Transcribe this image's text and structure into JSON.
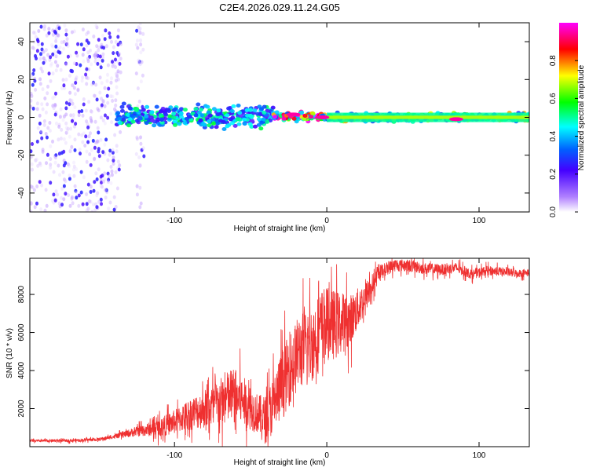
{
  "figure_title": "C2E4.2026.029.11.24.G05",
  "chart_data": [
    {
      "type": "heatmap",
      "name": "spectrogram",
      "xlabel": "Height of straight line (km)",
      "ylabel": "Frequency (Hz)",
      "xlim": [
        -195,
        133
      ],
      "ylim": [
        -50,
        50
      ],
      "x_ticks": [
        -100,
        0,
        100
      ],
      "y_ticks": [
        -40,
        -20,
        0,
        20,
        40
      ],
      "colorbar": {
        "label": "Normalized spectral amplitude",
        "range": [
          0.0,
          1.0
        ],
        "ticks": [
          "0.0",
          "0.2",
          "0.4",
          "0.6",
          "0.8"
        ],
        "colors": [
          "#ffffff",
          "#7b00ff",
          "#0000ff",
          "#00ffff",
          "#00ff00",
          "#ffff00",
          "#ff0000",
          "#ff00ff"
        ]
      },
      "regions": [
        {
          "x_range": [
            -195,
            -135
          ],
          "freq_range": [
            -50,
            50
          ],
          "typical_amplitude": 0.05,
          "note": "scattered noise"
        },
        {
          "x_range": [
            -125,
            -120
          ],
          "freq_range": [
            -50,
            50
          ],
          "typical_amplitude": 0.05,
          "note": "noise column"
        },
        {
          "x_range": [
            -138,
            -35
          ],
          "freq_range": [
            -7,
            8
          ],
          "typical_amplitude": 0.4,
          "note": "broad signal band"
        },
        {
          "x_range": [
            -35,
            0
          ],
          "freq_range": [
            -3,
            4
          ],
          "typical_amplitude": 0.75,
          "note": "narrowing band"
        },
        {
          "x_range": [
            0,
            133
          ],
          "freq_range": [
            -3,
            3
          ],
          "typical_amplitude": 0.55,
          "note": "narrow carrier"
        }
      ],
      "hotspots": [
        {
          "x": -22,
          "freq": 1.5,
          "amplitude": 0.95
        },
        {
          "x": -3,
          "freq": 0,
          "amplitude": 0.95
        },
        {
          "x": 85,
          "freq": -1,
          "amplitude": 0.95
        }
      ]
    },
    {
      "type": "line",
      "name": "snr",
      "xlabel": "Height of straight line (km)",
      "ylabel": "SNR (10 * v/v)",
      "xlim": [
        -195,
        133
      ],
      "ylim": [
        0,
        9900
      ],
      "x_ticks": [
        -100,
        0,
        100
      ],
      "y_ticks": [
        2000,
        4000,
        6000,
        8000
      ],
      "line_color": "#ef3030",
      "series": [
        {
          "name": "SNR",
          "points": [
            {
              "x": -195,
              "y": 300
            },
            {
              "x": -170,
              "y": 320
            },
            {
              "x": -150,
              "y": 380
            },
            {
              "x": -138,
              "y": 550
            },
            {
              "x": -125,
              "y": 800
            },
            {
              "x": -110,
              "y": 1000
            },
            {
              "x": -100,
              "y": 1300
            },
            {
              "x": -90,
              "y": 1700
            },
            {
              "x": -80,
              "y": 2000
            },
            {
              "x": -70,
              "y": 2300
            },
            {
              "x": -62,
              "y": 2700
            },
            {
              "x": -55,
              "y": 2400
            },
            {
              "x": -48,
              "y": 1900
            },
            {
              "x": -40,
              "y": 1400
            },
            {
              "x": -33,
              "y": 2600
            },
            {
              "x": -25,
              "y": 4000
            },
            {
              "x": -18,
              "y": 5000
            },
            {
              "x": -10,
              "y": 5400
            },
            {
              "x": -2,
              "y": 6500
            },
            {
              "x": 5,
              "y": 6400
            },
            {
              "x": 15,
              "y": 6600
            },
            {
              "x": 25,
              "y": 7800
            },
            {
              "x": 35,
              "y": 9200
            },
            {
              "x": 45,
              "y": 9550
            },
            {
              "x": 55,
              "y": 9500
            },
            {
              "x": 65,
              "y": 9350
            },
            {
              "x": 75,
              "y": 9300
            },
            {
              "x": 85,
              "y": 9400
            },
            {
              "x": 95,
              "y": 9050
            },
            {
              "x": 105,
              "y": 9250
            },
            {
              "x": 115,
              "y": 9200
            },
            {
              "x": 125,
              "y": 9100
            },
            {
              "x": 133,
              "y": 9150
            }
          ],
          "noise": [
            {
              "x": -195,
              "amp": 80
            },
            {
              "x": -140,
              "amp": 120
            },
            {
              "x": -120,
              "amp": 400
            },
            {
              "x": -100,
              "amp": 800
            },
            {
              "x": -80,
              "amp": 1300
            },
            {
              "x": -62,
              "amp": 1900
            },
            {
              "x": -45,
              "amp": 1300
            },
            {
              "x": -30,
              "amp": 2300
            },
            {
              "x": -10,
              "amp": 2600
            },
            {
              "x": 5,
              "amp": 2300
            },
            {
              "x": 20,
              "amp": 1400
            },
            {
              "x": 35,
              "amp": 450
            },
            {
              "x": 133,
              "amp": 250
            }
          ]
        }
      ]
    }
  ]
}
